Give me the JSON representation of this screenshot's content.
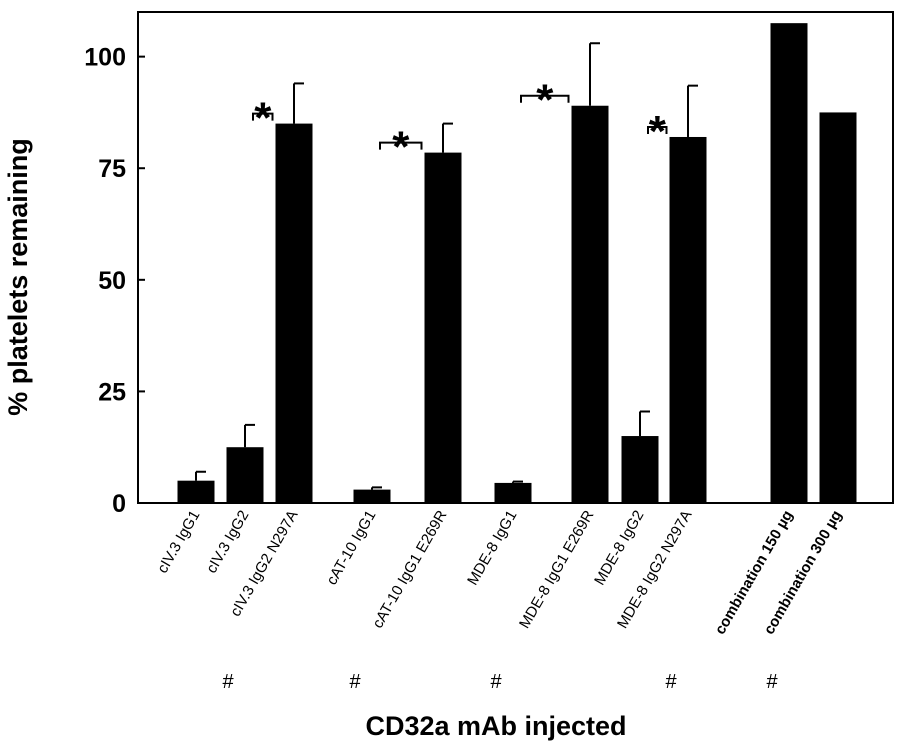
{
  "chart_data": {
    "type": "bar",
    "xlabel": "CD32a mAb injected",
    "ylabel": "% platelets remaining",
    "ylim": [
      0,
      110
    ],
    "yticks": [
      0,
      25,
      50,
      75,
      100
    ],
    "ytick_labels": [
      "0",
      "25",
      "50",
      "75",
      "100"
    ],
    "grid": false,
    "categories": [
      "cIV.3 IgG1",
      "cIV.3 IgG2",
      "cIV.3 IgG2 N297A",
      "cAT-10 IgG1",
      "cAT-10 IgG1 E269R",
      "MDE-8 IgG1",
      "MDE-8 IgG1 E269R",
      "MDE-8 IgG2",
      "MDE-8 IgG2 N297A",
      "combination 150 µg",
      "combination 300 µg"
    ],
    "values": [
      5,
      12.5,
      85,
      3,
      78.5,
      4.5,
      89,
      15,
      82,
      107.5,
      87.5
    ],
    "error": [
      2,
      5,
      9,
      0.5,
      6.5,
      0.3,
      14,
      5.5,
      11.5,
      0,
      0
    ],
    "bold_labels": [
      false,
      false,
      false,
      false,
      false,
      false,
      false,
      false,
      false,
      true,
      true
    ],
    "significance": [
      {
        "from": "cIV.3 IgG2",
        "to": "cIV.3 IgG2 N297A",
        "symbol": "*"
      },
      {
        "from": "cAT-10 IgG1",
        "to": "cAT-10 IgG1 E269R",
        "symbol": "*"
      },
      {
        "from": "MDE-8 IgG1",
        "to": "MDE-8 IgG1 E269R",
        "symbol": "*"
      },
      {
        "from": "MDE-8 IgG2",
        "to": "MDE-8 IgG2 N297A",
        "symbol": "*"
      }
    ],
    "hash_marks": [
      {
        "category": "cIV.3 IgG2",
        "symbol": "#"
      },
      {
        "category": "cAT-10 IgG1",
        "symbol": "#"
      },
      {
        "category": "MDE-8 IgG1",
        "symbol": "#"
      },
      {
        "category": "MDE-8 IgG2 N297A",
        "symbol": "#"
      },
      {
        "category": "combination 150 µg",
        "symbol": "#"
      }
    ],
    "colors": {
      "bar": "#000000",
      "axis": "#000000",
      "background": "#ffffff"
    }
  }
}
